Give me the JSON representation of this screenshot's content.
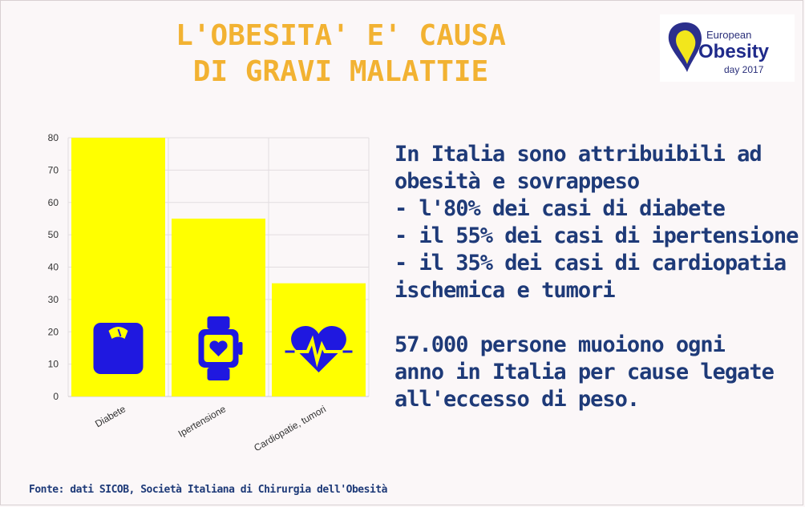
{
  "header": {
    "title_line1": "L'OBESITA' E' CAUSA",
    "title_line2": "DI GRAVI MALATTIE"
  },
  "logo": {
    "line1": "European",
    "line2": "Obesity",
    "line3": "day 2017",
    "pin_color": "#f2e61c",
    "brand_color": "#1f2a8a"
  },
  "chart_data": {
    "type": "bar",
    "categories": [
      "Diabete",
      "Ipertensione",
      "Cardiopatie, tumori"
    ],
    "values": [
      80,
      55,
      35
    ],
    "ylim": [
      0,
      80
    ],
    "yticks": [
      0,
      10,
      20,
      30,
      40,
      50,
      60,
      70,
      80
    ],
    "grid": true,
    "bar_color": "#ffff00",
    "icon_color": "#1f18e0",
    "icons": [
      "scale-icon",
      "smartwatch-icon",
      "heartbeat-icon"
    ]
  },
  "text": {
    "lines": [
      "In Italia sono attribuibili ad",
      "obesità e sovrappeso",
      "- l'80% dei casi di diabete",
      "- il 55% dei casi di ipertensione",
      "- il 35% dei casi di cardiopatia",
      "ischemica e tumori"
    ],
    "lines2": [
      "57.000 persone muoiono ogni",
      "anno in Italia per cause legate",
      "all'eccesso di peso."
    ],
    "color": "#1e3a78"
  },
  "footer": {
    "source": "Fonte: dati SICOB, Società Italiana di Chirurgia dell'Obesità"
  },
  "colors": {
    "title": "#f2b232",
    "background": "#fbf7f8"
  }
}
